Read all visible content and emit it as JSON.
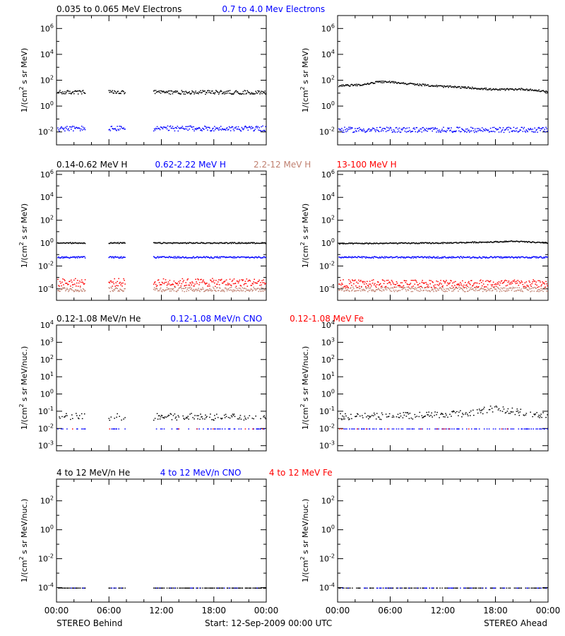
{
  "colors": {
    "black": "#000000",
    "blue": "#0000ff",
    "tan": "#c08070",
    "red": "#ff0000"
  },
  "footer": {
    "left_label": "STEREO Behind",
    "center_label": "Start: 12-Sep-2009 00:00 UTC",
    "right_label": "STEREO Ahead"
  },
  "x_axis": {
    "range_hours": [
      0,
      24
    ],
    "tick_labels": [
      "00:00",
      "06:00",
      "12:00",
      "18:00",
      "00:00"
    ]
  },
  "chart_data": [
    {
      "type": "scatter",
      "row": 0,
      "legend": [
        {
          "text": "0.035 to 0.065 MeV Electrons",
          "color": "black"
        },
        {
          "text": "0.7 to 4.0 Mev Electrons",
          "color": "blue"
        }
      ],
      "ylabel": "1/(cm^2 s sr MeV)",
      "yscale": "log",
      "ylim_exp": [
        -3,
        7
      ],
      "y_ticks": [
        {
          "exp": -2,
          "label": "10-2"
        },
        {
          "exp": 0,
          "label": "100"
        },
        {
          "exp": 2,
          "label": "102"
        },
        {
          "exp": 4,
          "label": "104"
        },
        {
          "exp": 6,
          "label": "106"
        }
      ],
      "panels": [
        {
          "side": "behind",
          "gaps": [
            [
              3.3,
              5.9
            ],
            [
              7.8,
              11.0
            ]
          ],
          "series": [
            {
              "name": "0.035 to 0.065 MeV Electrons",
              "color": "black",
              "log_level": 1.1,
              "scatter": 0.15
            },
            {
              "name": "0.7 to 4.0 Mev Electrons",
              "color": "blue",
              "log_level": -1.7,
              "scatter": 0.2
            }
          ]
        },
        {
          "side": "ahead",
          "gaps": [],
          "series": [
            {
              "name": "0.035 to 0.065 MeV Electrons",
              "color": "black",
              "scatter": 0.07,
              "profile": [
                [
                  0,
                  1.6
                ],
                [
                  3,
                  1.7
                ],
                [
                  4.5,
                  1.9
                ],
                [
                  6,
                  1.9
                ],
                [
                  9,
                  1.7
                ],
                [
                  12,
                  1.55
                ],
                [
                  15,
                  1.45
                ],
                [
                  18,
                  1.3
                ],
                [
                  21,
                  1.35
                ],
                [
                  24,
                  1.15
                ]
              ]
            },
            {
              "name": "0.7 to 4.0 Mev Electrons",
              "color": "blue",
              "log_level": -1.8,
              "scatter": 0.2
            }
          ]
        }
      ]
    },
    {
      "type": "scatter",
      "row": 1,
      "legend": [
        {
          "text": "0.14-0.62 MeV H",
          "color": "black"
        },
        {
          "text": "0.62-2.22 MeV H",
          "color": "blue"
        },
        {
          "text": "2.2-12 MeV H",
          "color": "tan"
        },
        {
          "text": "13-100 MeV H",
          "color": "red"
        }
      ],
      "ylabel": "1/(cm^2 s sr MeV)",
      "yscale": "log",
      "ylim_exp": [
        -5,
        6.3
      ],
      "y_ticks": [
        {
          "exp": -4,
          "label": "10-4"
        },
        {
          "exp": -2,
          "label": "10-2"
        },
        {
          "exp": 0,
          "label": "100"
        },
        {
          "exp": 2,
          "label": "102"
        },
        {
          "exp": 4,
          "label": "104"
        },
        {
          "exp": 6,
          "label": "106"
        }
      ],
      "panels": [
        {
          "side": "behind",
          "gaps": [
            [
              3.3,
              5.9
            ],
            [
              7.8,
              11.0
            ]
          ],
          "series": [
            {
              "name": "0.14-0.62 MeV H",
              "color": "black",
              "log_level": 0.05,
              "scatter": 0.05
            },
            {
              "name": "0.62-2.22 MeV H",
              "color": "blue",
              "log_level": -1.2,
              "scatter": 0.07
            },
            {
              "name": "2.2-12 MeV H",
              "color": "tan",
              "log_level": -4.0,
              "scatter": 0.2
            },
            {
              "name": "13-100 MeV H",
              "color": "red",
              "log_level": -3.4,
              "scatter": 0.35
            }
          ]
        },
        {
          "side": "ahead",
          "gaps": [],
          "series": [
            {
              "name": "0.14-0.62 MeV H",
              "color": "black",
              "scatter": 0.05,
              "profile": [
                [
                  0,
                  0.0
                ],
                [
                  12,
                  0.05
                ],
                [
                  18,
                  0.15
                ],
                [
                  20,
                  0.2
                ],
                [
                  24,
                  0.05
                ]
              ]
            },
            {
              "name": "0.62-2.22 MeV H",
              "color": "blue",
              "log_level": -1.2,
              "scatter": 0.07
            },
            {
              "name": "2.2-12 MeV H",
              "color": "tan",
              "log_level": -4.0,
              "scatter": 0.2
            },
            {
              "name": "13-100 MeV H",
              "color": "red",
              "log_level": -3.5,
              "scatter": 0.35
            }
          ]
        }
      ]
    },
    {
      "type": "scatter",
      "row": 2,
      "legend": [
        {
          "text": "0.12-1.08 MeV/n He",
          "color": "black"
        },
        {
          "text": "0.12-1.08 MeV/n CNO",
          "color": "blue"
        },
        {
          "text": "0.12-1.08 MeV Fe",
          "color": "red"
        }
      ],
      "ylabel": "1/(cm^2 s sr MeV/nuc.)",
      "yscale": "log",
      "ylim_exp": [
        -3.3,
        4
      ],
      "y_ticks": [
        {
          "exp": -3,
          "label": "10-3"
        },
        {
          "exp": -2,
          "label": "10-2"
        },
        {
          "exp": -1,
          "label": "10-1"
        },
        {
          "exp": 0,
          "label": "100"
        },
        {
          "exp": 1,
          "label": "101"
        },
        {
          "exp": 2,
          "label": "102"
        },
        {
          "exp": 3,
          "label": "103"
        },
        {
          "exp": 4,
          "label": "104"
        }
      ],
      "panels": [
        {
          "side": "behind",
          "gaps": [
            [
              3.3,
              5.9
            ],
            [
              7.8,
              11.0
            ]
          ],
          "series": [
            {
              "name": "0.12-1.08 MeV/n He",
              "color": "black",
              "log_level": -1.3,
              "scatter": 0.2,
              "density": 0.5
            },
            {
              "name": "0.12-1.08 MeV/n CNO",
              "color": "blue",
              "log_level": -2.0,
              "scatter": 0.0,
              "density": 0.25
            },
            {
              "name": "0.12-1.08 MeV Fe",
              "color": "red",
              "log_level": -2.0,
              "scatter": 0.0,
              "density": 0.05
            }
          ]
        },
        {
          "side": "ahead",
          "gaps": [],
          "series": [
            {
              "name": "0.12-1.08 MeV/n He",
              "color": "black",
              "scatter": 0.2,
              "density": 0.6,
              "profile": [
                [
                  0,
                  -1.3
                ],
                [
                  12,
                  -1.2
                ],
                [
                  16,
                  -1.0
                ],
                [
                  18,
                  -0.8
                ],
                [
                  20,
                  -1.0
                ],
                [
                  24,
                  -1.2
                ]
              ]
            },
            {
              "name": "0.12-1.08 MeV/n CNO",
              "color": "blue",
              "log_level": -2.0,
              "scatter": 0.0,
              "density": 0.3
            },
            {
              "name": "0.12-1.08 MeV Fe",
              "color": "red",
              "log_level": -2.0,
              "scatter": 0.0,
              "density": 0.05
            }
          ]
        }
      ]
    },
    {
      "type": "scatter",
      "row": 3,
      "legend": [
        {
          "text": "4 to 12 MeV/n He",
          "color": "black"
        },
        {
          "text": "4 to 12 MeV/n CNO",
          "color": "blue"
        },
        {
          "text": "4 to 12 MeV Fe",
          "color": "red"
        }
      ],
      "ylabel": "1/(cm^2 s sr MeV/nuc.)",
      "yscale": "log",
      "ylim_exp": [
        -5,
        3.5
      ],
      "y_ticks": [
        {
          "exp": -4,
          "label": "10-4"
        },
        {
          "exp": -2,
          "label": "10-2"
        },
        {
          "exp": 0,
          "label": "100"
        },
        {
          "exp": 2,
          "label": "102"
        }
      ],
      "panels": [
        {
          "side": "behind",
          "gaps": [
            [
              3.3,
              5.9
            ],
            [
              7.8,
              11.0
            ]
          ],
          "series": [
            {
              "name": "4 to 12 MeV/n He",
              "color": "black",
              "log_level": -4.0,
              "scatter": 0.0,
              "density": 0.6
            },
            {
              "name": "4 to 12 MeV/n CNO",
              "color": "blue",
              "log_level": -4.0,
              "scatter": 0.0,
              "density": 0.1
            }
          ]
        },
        {
          "side": "ahead",
          "gaps": [],
          "series": [
            {
              "name": "4 to 12 MeV/n He",
              "color": "black",
              "log_level": -4.0,
              "scatter": 0.0,
              "density": 0.5
            },
            {
              "name": "4 to 12 MeV/n CNO",
              "color": "blue",
              "log_level": -4.0,
              "scatter": 0.0,
              "density": 0.15
            }
          ]
        }
      ]
    }
  ]
}
